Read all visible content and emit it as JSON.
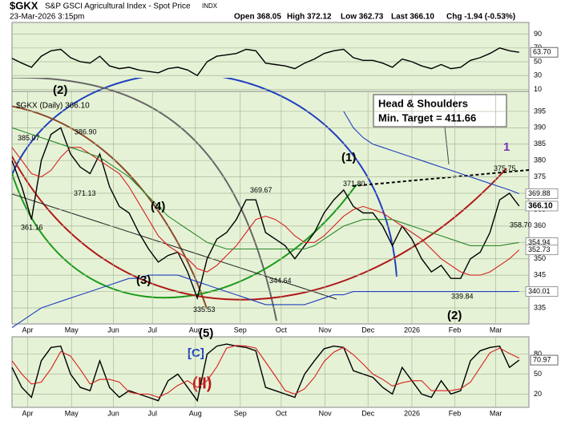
{
  "header": {
    "symbol": "$GKX",
    "name": "S&P GSCI Agricultural Index - Spot Price",
    "exchange": "INDX",
    "date": "23-Mar-2026 3:15pm",
    "quote": [
      "Open 368.05",
      "High 372.12",
      "Low 362.73",
      "Last 366.10",
      "Chg -1.94 (-0.53%)"
    ]
  },
  "chart_data": [
    {
      "type": "line",
      "xlim": [
        0,
        53
      ],
      "ylim": [
        7,
        107
      ],
      "yticks": [
        10,
        30,
        50,
        70,
        90
      ],
      "x": [
        0,
        1,
        2,
        3,
        4,
        5,
        6,
        7,
        8,
        9,
        10,
        11,
        12,
        13,
        14,
        15,
        16,
        17,
        18,
        19,
        20,
        21,
        22,
        23,
        24,
        25,
        26,
        27,
        28,
        29,
        30,
        31,
        32,
        33,
        34,
        35,
        36,
        37,
        38,
        39,
        40,
        41,
        42,
        43,
        44,
        45,
        46,
        47,
        48,
        49,
        50,
        51,
        52
      ],
      "series": [
        {
          "color": "#000000",
          "values": [
            55,
            48,
            42,
            58,
            66,
            68,
            56,
            50,
            48,
            58,
            44,
            40,
            42,
            38,
            36,
            34,
            40,
            42,
            38,
            30,
            50,
            58,
            60,
            62,
            68,
            66,
            48,
            46,
            44,
            40,
            48,
            54,
            62,
            66,
            68,
            56,
            52,
            52,
            48,
            42,
            54,
            50,
            44,
            40,
            46,
            40,
            42,
            52,
            56,
            62,
            70,
            66,
            63.7
          ]
        }
      ],
      "value_label": {
        "value": 63.7,
        "label": "63.70"
      }
    },
    {
      "type": "line",
      "legend": "$GKX (Daily) 366.10",
      "xlim": [
        0,
        53
      ],
      "ylim": [
        330.1,
        401.1
      ],
      "yticks": [
        335,
        340,
        345,
        350,
        355,
        360,
        365,
        370,
        375,
        380,
        385,
        390,
        395
      ],
      "xticks": [
        {
          "value": 1.6,
          "label": "Apr"
        },
        {
          "value": 6.1,
          "label": "May"
        },
        {
          "value": 10.4,
          "label": "Jun"
        },
        {
          "value": 14.4,
          "label": "Jul"
        },
        {
          "value": 18.8,
          "label": "Aug"
        },
        {
          "value": 23.4,
          "label": "Sep"
        },
        {
          "value": 27.6,
          "label": "Oct"
        },
        {
          "value": 32.1,
          "label": "Nov"
        },
        {
          "value": 36.5,
          "label": "Dec"
        },
        {
          "value": 41.0,
          "label": "2026"
        },
        {
          "value": 45.4,
          "label": "Feb"
        },
        {
          "value": 49.6,
          "label": "Mar"
        }
      ],
      "x": [
        0,
        1,
        2,
        3,
        4,
        5,
        6,
        7,
        8,
        9,
        10,
        11,
        12,
        13,
        14,
        15,
        16,
        17,
        18,
        19,
        20,
        21,
        22,
        23,
        24,
        25,
        26,
        27,
        28,
        29,
        30,
        31,
        32,
        33,
        34,
        35,
        36,
        37,
        38,
        39,
        40,
        41,
        42,
        43,
        44,
        45,
        46,
        47,
        48,
        49,
        50,
        51,
        52
      ],
      "series": [
        {
          "color": "#000000",
          "values": [
            380,
            372,
            362,
            380,
            388,
            390,
            382,
            378,
            376,
            382,
            372,
            366,
            364,
            358,
            353,
            349,
            351,
            352,
            346,
            338,
            350,
            356,
            358,
            362,
            368,
            368,
            358,
            356,
            354,
            350,
            354,
            358,
            364,
            368,
            371,
            366,
            364,
            364,
            360,
            354,
            360,
            356,
            350,
            346,
            348,
            344,
            344,
            350,
            352,
            358,
            368,
            370,
            366.1
          ]
        },
        {
          "color": "#d62020",
          "values": [
            384,
            380,
            376,
            375,
            377,
            381,
            384,
            384,
            382,
            380,
            378,
            376,
            372,
            367,
            362,
            357,
            354,
            352,
            350,
            347,
            346,
            348,
            351,
            354,
            358,
            362,
            363,
            362,
            360,
            357,
            355,
            355,
            357,
            360,
            363,
            365,
            366,
            365,
            364,
            362,
            360,
            358,
            356,
            353,
            350,
            348,
            346,
            345,
            345,
            346,
            348,
            350,
            352.73
          ]
        },
        {
          "color": "#2c8a2c",
          "values": [
            390,
            389,
            388,
            387,
            386,
            385,
            384,
            383,
            382,
            381,
            379,
            377,
            375,
            372,
            369,
            366,
            363,
            361,
            359,
            357,
            355,
            354,
            353,
            353,
            353,
            353,
            353,
            353,
            353,
            353,
            353,
            354,
            356,
            358,
            360,
            361,
            362,
            362,
            362,
            362,
            361,
            360,
            359,
            358,
            357,
            356,
            355,
            354,
            354,
            354,
            354,
            354.5,
            354.94
          ]
        },
        {
          "color": "#1f3fbf",
          "values": [
            329,
            331,
            333,
            335,
            336,
            337,
            338,
            339,
            340,
            341,
            342,
            343,
            344,
            344,
            345,
            345,
            345,
            345,
            344,
            343,
            342,
            341,
            340,
            339,
            338,
            337,
            336,
            336,
            336,
            336,
            336,
            337,
            338,
            339,
            339,
            340,
            340,
            340,
            340,
            340,
            340,
            340,
            340,
            340,
            340,
            340,
            340,
            340,
            340,
            340,
            340,
            340,
            340.01
          ]
        },
        {
          "color": "#1f3fbf",
          "values": [
            null,
            null,
            null,
            null,
            null,
            null,
            null,
            null,
            null,
            null,
            null,
            null,
            null,
            null,
            null,
            null,
            null,
            null,
            null,
            null,
            null,
            null,
            null,
            null,
            null,
            null,
            null,
            null,
            null,
            null,
            null,
            null,
            null,
            null,
            395,
            390,
            387,
            385,
            384,
            383,
            382,
            381,
            380,
            379,
            378,
            377,
            376,
            375,
            374,
            373,
            372,
            371,
            369.88
          ]
        }
      ],
      "point_labels": [
        {
          "value": 385.07,
          "label": "385.07"
        },
        {
          "value": 386.9,
          "label": "386.90"
        },
        {
          "value": 371.13,
          "label": "371.13"
        },
        {
          "value": 361.16,
          "label": "361.16"
        },
        {
          "value": 369.67,
          "label": "369.67"
        },
        {
          "value": 344.64,
          "label": "344.64"
        },
        {
          "value": 335.53,
          "label": "335.53"
        },
        {
          "value": 371.8,
          "label": "371.80"
        },
        {
          "value": 375.75,
          "label": "375.75"
        },
        {
          "value": 358.7,
          "label": "358.70"
        },
        {
          "value": 339.84,
          "label": "339.84"
        }
      ],
      "right_labels": [
        {
          "value": 369.88,
          "label": "369.88"
        },
        {
          "value": 366.1,
          "label": "366.10"
        },
        {
          "value": 354.94,
          "label": "354.94"
        },
        {
          "value": 352.73,
          "label": "352.73"
        },
        {
          "value": 340.01,
          "label": "340.01"
        }
      ],
      "annotations": [
        "(2)",
        "(4)",
        "(3)",
        "(5)",
        "(1)",
        "(2)",
        "1",
        "Head & Shoulders",
        "Min. Target = 411.66",
        "[C]",
        "(II)"
      ]
    },
    {
      "type": "line",
      "xlim": [
        0,
        53
      ],
      "ylim": [
        0,
        106
      ],
      "yticks": [
        20,
        50,
        80
      ],
      "xticks": [
        {
          "value": 1.6,
          "label": "Apr"
        },
        {
          "value": 6.1,
          "label": "May"
        },
        {
          "value": 10.4,
          "label": "Jun"
        },
        {
          "value": 14.4,
          "label": "Jul"
        },
        {
          "value": 18.8,
          "label": "Aug"
        },
        {
          "value": 23.4,
          "label": "Sep"
        },
        {
          "value": 27.6,
          "label": "Oct"
        },
        {
          "value": 32.1,
          "label": "Nov"
        },
        {
          "value": 36.5,
          "label": "Dec"
        },
        {
          "value": 41.0,
          "label": "2026"
        },
        {
          "value": 45.4,
          "label": "Feb"
        },
        {
          "value": 49.6,
          "label": "Mar"
        }
      ],
      "x": [
        0,
        1,
        2,
        3,
        4,
        5,
        6,
        7,
        8,
        9,
        10,
        11,
        12,
        13,
        14,
        15,
        16,
        17,
        18,
        19,
        20,
        21,
        22,
        23,
        24,
        25,
        26,
        27,
        28,
        29,
        30,
        31,
        32,
        33,
        34,
        35,
        36,
        37,
        38,
        39,
        40,
        41,
        42,
        43,
        44,
        45,
        46,
        47,
        48,
        49,
        50,
        51,
        52
      ],
      "series": [
        {
          "color": "#000000",
          "values": [
            60,
            30,
            15,
            70,
            90,
            92,
            50,
            30,
            25,
            70,
            30,
            15,
            25,
            20,
            15,
            10,
            40,
            50,
            30,
            10,
            80,
            92,
            95,
            92,
            90,
            85,
            30,
            25,
            20,
            15,
            50,
            70,
            88,
            92,
            90,
            55,
            50,
            45,
            30,
            20,
            60,
            40,
            20,
            15,
            40,
            20,
            25,
            70,
            85,
            90,
            92,
            60,
            70.97
          ]
        },
        {
          "color": "#d62020",
          "values": [
            70,
            50,
            35,
            38,
            58,
            84,
            77,
            57,
            35,
            42,
            42,
            38,
            23,
            20,
            20,
            15,
            22,
            33,
            40,
            30,
            40,
            61,
            89,
            93,
            92,
            89,
            68,
            47,
            25,
            20,
            28,
            45,
            69,
            83,
            90,
            79,
            65,
            50,
            42,
            32,
            37,
            40,
            40,
            25,
            25,
            25,
            28,
            38,
            60,
            82,
            89,
            81,
            74
          ]
        }
      ],
      "value_label": {
        "value": 70.97,
        "label": "70.97"
      }
    }
  ]
}
